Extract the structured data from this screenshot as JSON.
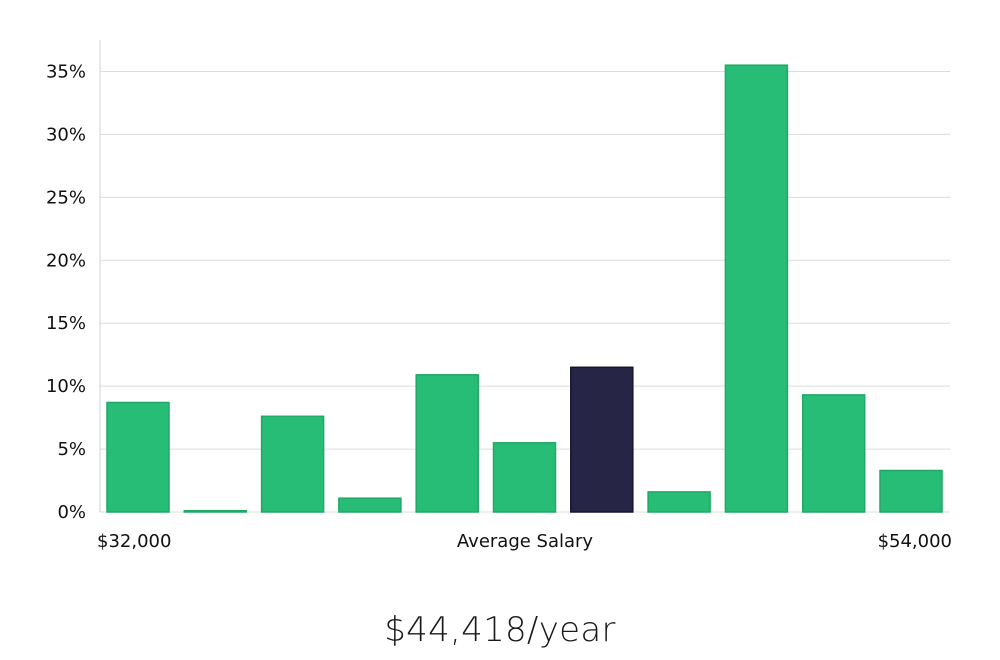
{
  "chart_data": {
    "type": "bar",
    "title": "",
    "xlabel": "Average Salary",
    "ylabel": "",
    "x_min_label": "$32,000",
    "x_max_label": "$54,000",
    "ylim": [
      0,
      37.5
    ],
    "yticks": [
      0,
      5,
      10,
      15,
      20,
      25,
      30,
      35
    ],
    "ytick_labels": [
      "0%",
      "5%",
      "10%",
      "15%",
      "20%",
      "25%",
      "30%",
      "35%"
    ],
    "values": [
      8.7,
      0.1,
      7.6,
      1.1,
      10.9,
      5.5,
      11.5,
      1.6,
      35.5,
      9.3,
      3.3
    ],
    "highlight_index": 6,
    "grid": true,
    "colors": {
      "bar": "#28bd77",
      "bar_edge": "#1fa866",
      "highlight": "#272546",
      "highlight_edge": "#141330"
    }
  },
  "salary": {
    "caption": "$44,418/year"
  }
}
